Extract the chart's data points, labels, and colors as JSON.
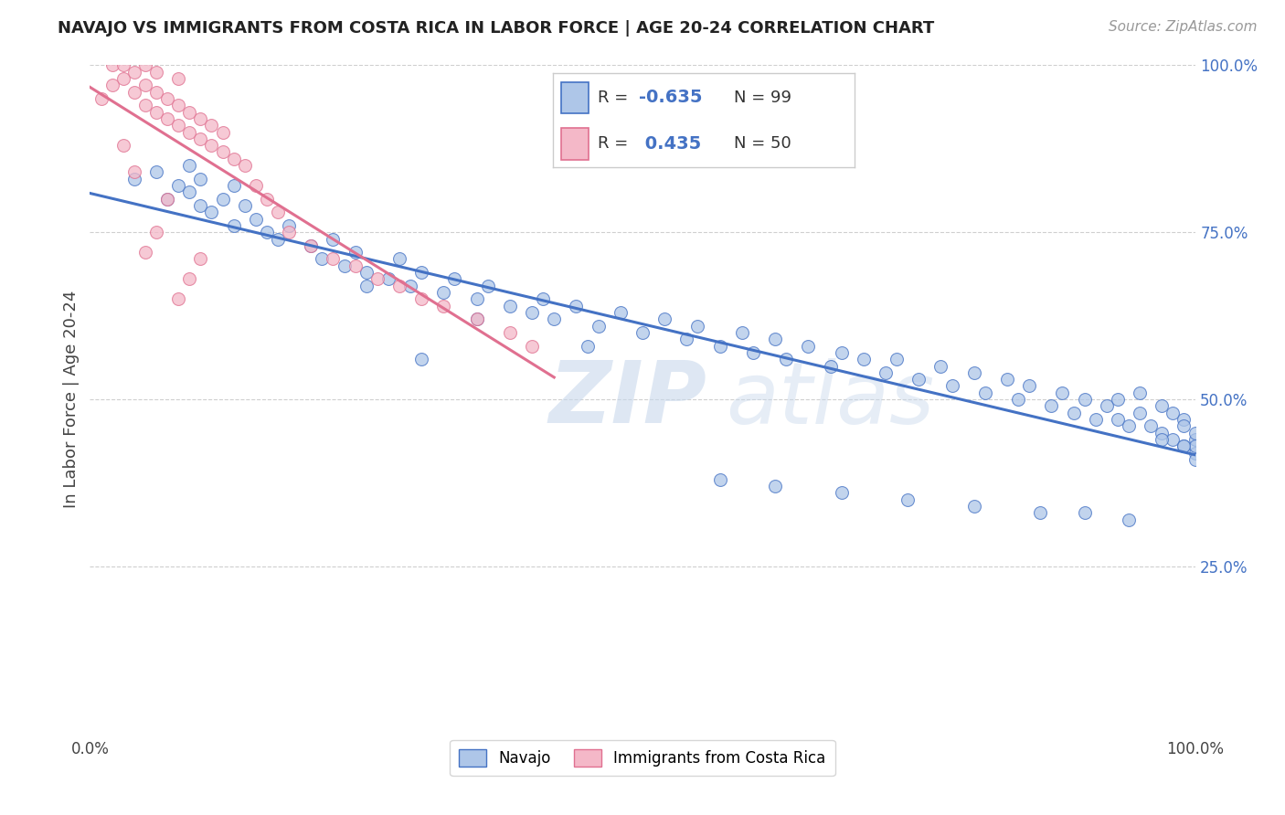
{
  "title": "NAVAJO VS IMMIGRANTS FROM COSTA RICA IN LABOR FORCE | AGE 20-24 CORRELATION CHART",
  "source_text": "Source: ZipAtlas.com",
  "ylabel": "In Labor Force | Age 20-24",
  "xlim": [
    0.0,
    1.0
  ],
  "ylim": [
    0.0,
    1.0
  ],
  "watermark_zip": "ZIP",
  "watermark_atlas": "atlas",
  "legend_R1": "-0.635",
  "legend_N1": "99",
  "legend_R2": "0.435",
  "legend_N2": "50",
  "blue_fill": "#aec6e8",
  "blue_edge": "#4472c4",
  "pink_fill": "#f4b8c8",
  "pink_edge": "#e07090",
  "background_color": "#ffffff",
  "grid_color": "#bbbbbb",
  "navajo_x": [
    0.04,
    0.06,
    0.07,
    0.08,
    0.09,
    0.09,
    0.1,
    0.1,
    0.11,
    0.12,
    0.13,
    0.13,
    0.14,
    0.15,
    0.16,
    0.17,
    0.18,
    0.2,
    0.21,
    0.22,
    0.23,
    0.24,
    0.25,
    0.27,
    0.28,
    0.29,
    0.3,
    0.32,
    0.33,
    0.35,
    0.36,
    0.38,
    0.4,
    0.41,
    0.42,
    0.44,
    0.46,
    0.48,
    0.5,
    0.52,
    0.54,
    0.55,
    0.57,
    0.59,
    0.6,
    0.62,
    0.63,
    0.65,
    0.67,
    0.68,
    0.7,
    0.72,
    0.73,
    0.75,
    0.77,
    0.78,
    0.8,
    0.81,
    0.83,
    0.84,
    0.85,
    0.87,
    0.88,
    0.89,
    0.9,
    0.91,
    0.92,
    0.93,
    0.93,
    0.94,
    0.95,
    0.95,
    0.96,
    0.97,
    0.97,
    0.98,
    0.98,
    0.99,
    0.99,
    0.99,
    1.0,
    1.0,
    1.0,
    1.0,
    1.0,
    0.57,
    0.62,
    0.68,
    0.74,
    0.8,
    0.86,
    0.9,
    0.94,
    0.97,
    0.99,
    0.35,
    0.45,
    0.25,
    0.3
  ],
  "navajo_y": [
    0.83,
    0.84,
    0.8,
    0.82,
    0.81,
    0.85,
    0.79,
    0.83,
    0.78,
    0.8,
    0.82,
    0.76,
    0.79,
    0.77,
    0.75,
    0.74,
    0.76,
    0.73,
    0.71,
    0.74,
    0.7,
    0.72,
    0.69,
    0.68,
    0.71,
    0.67,
    0.69,
    0.66,
    0.68,
    0.65,
    0.67,
    0.64,
    0.63,
    0.65,
    0.62,
    0.64,
    0.61,
    0.63,
    0.6,
    0.62,
    0.59,
    0.61,
    0.58,
    0.6,
    0.57,
    0.59,
    0.56,
    0.58,
    0.55,
    0.57,
    0.56,
    0.54,
    0.56,
    0.53,
    0.55,
    0.52,
    0.54,
    0.51,
    0.53,
    0.5,
    0.52,
    0.49,
    0.51,
    0.48,
    0.5,
    0.47,
    0.49,
    0.47,
    0.5,
    0.46,
    0.48,
    0.51,
    0.46,
    0.49,
    0.45,
    0.48,
    0.44,
    0.47,
    0.43,
    0.46,
    0.44,
    0.42,
    0.45,
    0.41,
    0.43,
    0.38,
    0.37,
    0.36,
    0.35,
    0.34,
    0.33,
    0.33,
    0.32,
    0.44,
    0.43,
    0.62,
    0.58,
    0.67,
    0.56
  ],
  "costa_rica_x": [
    0.01,
    0.02,
    0.02,
    0.03,
    0.03,
    0.04,
    0.04,
    0.05,
    0.05,
    0.05,
    0.06,
    0.06,
    0.06,
    0.07,
    0.07,
    0.08,
    0.08,
    0.08,
    0.09,
    0.09,
    0.1,
    0.1,
    0.11,
    0.11,
    0.12,
    0.12,
    0.13,
    0.14,
    0.15,
    0.16,
    0.17,
    0.18,
    0.2,
    0.22,
    0.24,
    0.26,
    0.28,
    0.3,
    0.32,
    0.35,
    0.38,
    0.4,
    0.05,
    0.06,
    0.07,
    0.08,
    0.09,
    0.1,
    0.03,
    0.04
  ],
  "costa_rica_y": [
    0.95,
    0.97,
    1.0,
    0.98,
    1.0,
    0.96,
    0.99,
    0.94,
    0.97,
    1.0,
    0.93,
    0.96,
    0.99,
    0.92,
    0.95,
    0.91,
    0.94,
    0.98,
    0.9,
    0.93,
    0.89,
    0.92,
    0.88,
    0.91,
    0.87,
    0.9,
    0.86,
    0.85,
    0.82,
    0.8,
    0.78,
    0.75,
    0.73,
    0.71,
    0.7,
    0.68,
    0.67,
    0.65,
    0.64,
    0.62,
    0.6,
    0.58,
    0.72,
    0.75,
    0.8,
    0.65,
    0.68,
    0.71,
    0.88,
    0.84
  ]
}
